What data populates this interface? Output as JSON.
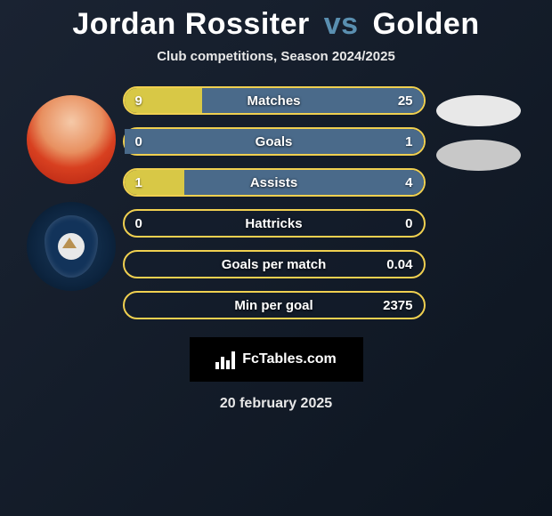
{
  "title": {
    "player1": "Jordan Rossiter",
    "vs": "vs",
    "player2": "Golden"
  },
  "subtitle": "Club competitions, Season 2024/2025",
  "colors": {
    "bar_border": "#f0d050",
    "fill_player1": "#d8c846",
    "fill_player2": "#4a6a8a",
    "text": "#ffffff"
  },
  "stats": [
    {
      "label": "Matches",
      "left_val": "9",
      "right_val": "25",
      "left_pct": 26,
      "right_pct": 74
    },
    {
      "label": "Goals",
      "left_val": "0",
      "right_val": "1",
      "left_pct": 0,
      "right_pct": 100
    },
    {
      "label": "Assists",
      "left_val": "1",
      "right_val": "4",
      "left_pct": 20,
      "right_pct": 80
    },
    {
      "label": "Hattricks",
      "left_val": "0",
      "right_val": "0",
      "left_pct": 0,
      "right_pct": 0
    },
    {
      "label": "Goals per match",
      "left_val": "",
      "right_val": "0.04",
      "left_pct": 0,
      "right_pct": 0
    },
    {
      "label": "Min per goal",
      "left_val": "",
      "right_val": "2375",
      "left_pct": 0,
      "right_pct": 0
    }
  ],
  "branding": {
    "text": "FcTables.com"
  },
  "date": "20 february 2025",
  "right_badges": [
    {
      "color": "#e8e8e8"
    },
    {
      "color": "#c8c8c8"
    }
  ]
}
